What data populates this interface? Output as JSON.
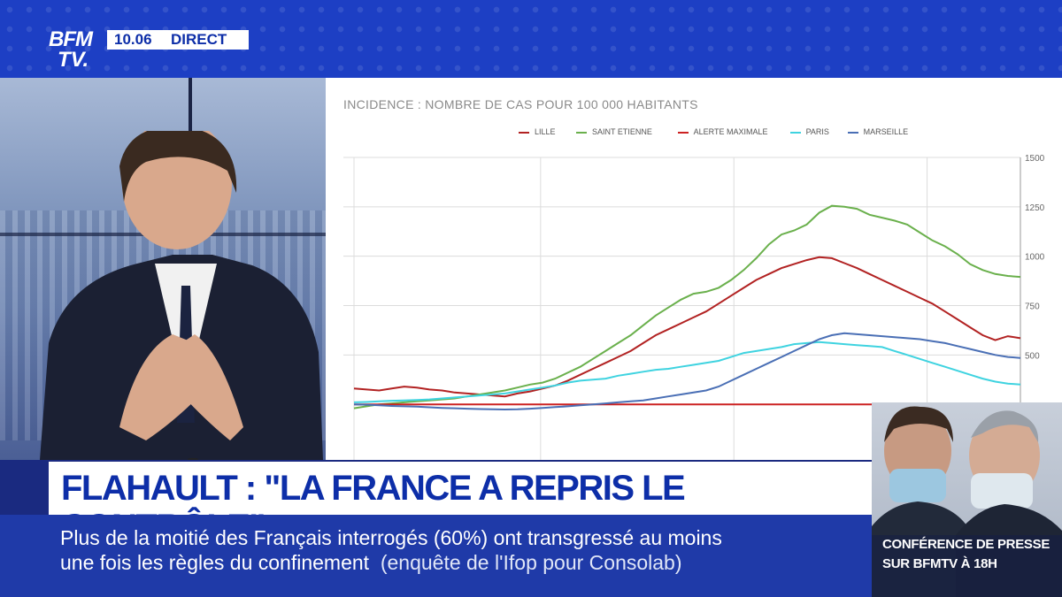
{
  "channel": {
    "logo_line1": "BFM",
    "logo_line2": "TV.",
    "time": "10.06",
    "live_label": "DIRECT"
  },
  "headline": "FLAHAULT : \"LA FRANCE A REPRIS LE CONTRÔLE\"",
  "ticker": {
    "line1": "Plus de la moitié des Français interrogés (60%) ont transgressé au moins",
    "line2_main": "une fois les règles du confinement",
    "line2_source": "(enquête de l'Ifop pour Consolab)"
  },
  "inset": {
    "line1": "CONFÉRENCE DE PRESSE",
    "line2": "SUR BFMTV À 18H"
  },
  "chart_data": {
    "type": "line",
    "title": "INCIDENCE : NOMBRE DE CAS POUR 100 000 HABITANTS",
    "y_ticks": [
      "1500",
      "1250",
      "1000",
      "750",
      "500"
    ],
    "ylim": [
      0,
      1500
    ],
    "grid": true,
    "legend_position": "top",
    "x": [
      0,
      1,
      2,
      3,
      4,
      5,
      6,
      7,
      8,
      9,
      10,
      11,
      12,
      13,
      14,
      15,
      16,
      17,
      18,
      19,
      20,
      21,
      22,
      23,
      24,
      25,
      26,
      27,
      28,
      29,
      30,
      31,
      32,
      33,
      34,
      35,
      36,
      37,
      38,
      39,
      40,
      41,
      42,
      43,
      44,
      45,
      46,
      47,
      48,
      49,
      50,
      51,
      52,
      53
    ],
    "series": [
      {
        "name": "LILLE",
        "color": "#b22222",
        "values": [
          330,
          325,
          320,
          330,
          340,
          335,
          325,
          320,
          310,
          305,
          300,
          295,
          290,
          305,
          315,
          330,
          345,
          370,
          400,
          430,
          460,
          490,
          520,
          560,
          600,
          630,
          660,
          690,
          720,
          760,
          800,
          840,
          880,
          910,
          940,
          960,
          980,
          995,
          990,
          965,
          940,
          910,
          880,
          850,
          820,
          790,
          760,
          720,
          680,
          640,
          600,
          575,
          595,
          585
        ]
      },
      {
        "name": "SAINT ETIENNE",
        "color": "#6ab04c",
        "values": [
          230,
          240,
          250,
          255,
          260,
          265,
          270,
          275,
          280,
          290,
          300,
          310,
          320,
          335,
          350,
          360,
          380,
          410,
          440,
          480,
          520,
          560,
          600,
          650,
          700,
          740,
          780,
          810,
          820,
          840,
          880,
          930,
          990,
          1060,
          1110,
          1130,
          1160,
          1220,
          1255,
          1250,
          1240,
          1210,
          1195,
          1180,
          1160,
          1120,
          1080,
          1050,
          1010,
          960,
          930,
          910,
          900,
          895
        ]
      },
      {
        "name": "ALERTE MAXIMALE",
        "color": "#cc2222",
        "values": [
          250,
          250,
          250,
          250,
          250,
          250,
          250,
          250,
          250,
          250,
          250,
          250,
          250,
          250,
          250,
          250,
          250,
          250,
          250,
          250,
          250,
          250,
          250,
          250,
          250,
          250,
          250,
          250,
          250,
          250,
          250,
          250,
          250,
          250,
          250,
          250,
          250,
          250,
          250,
          250,
          250,
          250,
          250,
          250,
          250,
          250,
          250,
          250,
          250,
          250,
          250,
          250,
          250,
          250
        ]
      },
      {
        "name": "PARIS",
        "color": "#3fd3e0",
        "values": [
          260,
          262,
          265,
          268,
          270,
          272,
          275,
          280,
          285,
          290,
          295,
          300,
          305,
          315,
          325,
          335,
          345,
          360,
          370,
          375,
          380,
          395,
          405,
          415,
          425,
          430,
          440,
          450,
          460,
          470,
          490,
          510,
          520,
          530,
          540,
          555,
          560,
          565,
          560,
          555,
          550,
          545,
          540,
          520,
          500,
          480,
          460,
          440,
          420,
          400,
          380,
          365,
          355,
          350
        ]
      },
      {
        "name": "MARSEILLE",
        "color": "#4a6fb5",
        "values": [
          250,
          248,
          245,
          242,
          240,
          238,
          235,
          232,
          230,
          228,
          226,
          225,
          224,
          225,
          228,
          232,
          236,
          240,
          245,
          250,
          255,
          260,
          265,
          270,
          280,
          290,
          300,
          310,
          320,
          340,
          370,
          400,
          430,
          460,
          490,
          520,
          550,
          580,
          600,
          610,
          605,
          600,
          595,
          590,
          585,
          580,
          570,
          560,
          545,
          530,
          515,
          500,
          490,
          485
        ]
      }
    ]
  }
}
